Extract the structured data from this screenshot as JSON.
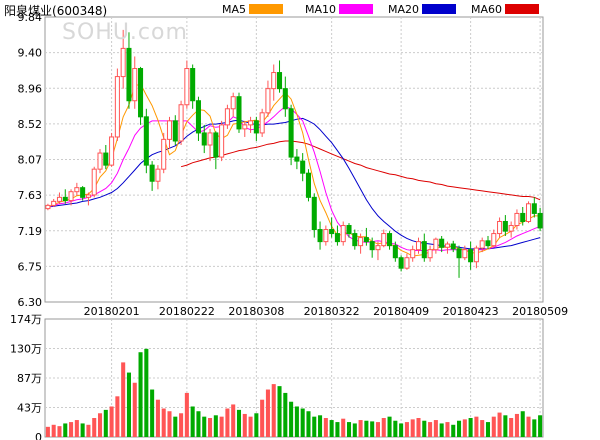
{
  "header": {
    "stock_name": "阳泉煤业",
    "stock_code": "(600348)",
    "watermark": "SOHU.com"
  },
  "colors": {
    "ma5": "#ff9900",
    "ma10": "#ff00ff",
    "ma20": "#0000cc",
    "ma60": "#dd0000",
    "up": "#ff5555",
    "down": "#00aa00",
    "grid": "#cccccc"
  },
  "chart_data": [
    {
      "type": "candlestick",
      "legend": [
        {
          "name": "MA5",
          "color": "#ff9900"
        },
        {
          "name": "MA10",
          "color": "#ff00ff"
        },
        {
          "name": "MA20",
          "color": "#0000cc"
        },
        {
          "name": "MA60",
          "color": "#dd0000"
        }
      ],
      "y_ticks": [
        "9.84",
        "9.40",
        "8.96",
        "8.52",
        "8.07",
        "7.63",
        "7.19",
        "6.75",
        "6.30"
      ],
      "ylim": [
        6.3,
        9.84
      ],
      "x_ticks": [
        {
          "label": "20180201",
          "index": 11
        },
        {
          "label": "20180222",
          "index": 24
        },
        {
          "label": "20180308",
          "index": 36
        },
        {
          "label": "20180322",
          "index": 49
        },
        {
          "label": "20180409",
          "index": 61
        },
        {
          "label": "20180423",
          "index": 73
        },
        {
          "label": "20180509",
          "index": 85
        }
      ],
      "ohlc": [
        [
          7.46,
          7.52,
          7.44,
          7.5
        ],
        [
          7.5,
          7.58,
          7.48,
          7.55
        ],
        [
          7.55,
          7.66,
          7.52,
          7.6
        ],
        [
          7.6,
          7.7,
          7.52,
          7.56
        ],
        [
          7.56,
          7.7,
          7.5,
          7.67
        ],
        [
          7.67,
          7.78,
          7.62,
          7.72
        ],
        [
          7.72,
          7.74,
          7.56,
          7.6
        ],
        [
          7.6,
          7.66,
          7.5,
          7.63
        ],
        [
          7.63,
          7.98,
          7.6,
          7.95
        ],
        [
          7.95,
          8.2,
          7.9,
          8.15
        ],
        [
          8.15,
          8.25,
          7.95,
          8.0
        ],
        [
          8.0,
          8.4,
          7.98,
          8.35
        ],
        [
          8.35,
          9.2,
          8.3,
          9.1
        ],
        [
          9.1,
          9.68,
          8.95,
          9.45
        ],
        [
          9.45,
          9.65,
          8.7,
          8.8
        ],
        [
          8.8,
          9.35,
          8.7,
          9.2
        ],
        [
          9.2,
          9.22,
          8.5,
          8.6
        ],
        [
          8.6,
          8.7,
          7.9,
          8.0
        ],
        [
          8.0,
          8.05,
          7.68,
          7.8
        ],
        [
          7.8,
          8.0,
          7.7,
          7.95
        ],
        [
          7.95,
          8.4,
          7.9,
          8.32
        ],
        [
          8.32,
          8.6,
          8.2,
          8.55
        ],
        [
          8.55,
          8.62,
          8.25,
          8.3
        ],
        [
          8.3,
          8.8,
          8.25,
          8.75
        ],
        [
          8.75,
          9.3,
          8.7,
          9.2
        ],
        [
          9.2,
          9.25,
          8.7,
          8.8
        ],
        [
          8.8,
          8.85,
          8.3,
          8.4
        ],
        [
          8.4,
          8.5,
          8.15,
          8.25
        ],
        [
          8.25,
          8.45,
          8.05,
          8.4
        ],
        [
          8.4,
          8.42,
          7.95,
          8.1
        ],
        [
          8.1,
          8.55,
          8.05,
          8.5
        ],
        [
          8.5,
          8.75,
          8.45,
          8.7
        ],
        [
          8.7,
          8.9,
          8.6,
          8.85
        ],
        [
          8.85,
          8.9,
          8.4,
          8.45
        ],
        [
          8.45,
          8.55,
          8.35,
          8.5
        ],
        [
          8.5,
          8.6,
          8.4,
          8.55
        ],
        [
          8.55,
          8.6,
          8.3,
          8.4
        ],
        [
          8.4,
          8.7,
          8.35,
          8.65
        ],
        [
          8.65,
          9.05,
          8.6,
          8.95
        ],
        [
          8.95,
          9.25,
          8.8,
          9.15
        ],
        [
          9.15,
          9.3,
          8.9,
          8.95
        ],
        [
          8.95,
          9.1,
          8.6,
          8.7
        ],
        [
          8.7,
          8.75,
          8.0,
          8.1
        ],
        [
          8.1,
          8.2,
          7.95,
          8.05
        ],
        [
          8.05,
          8.15,
          7.8,
          7.9
        ],
        [
          7.9,
          7.95,
          7.55,
          7.6
        ],
        [
          7.6,
          7.65,
          7.1,
          7.2
        ],
        [
          7.2,
          7.3,
          6.95,
          7.05
        ],
        [
          7.05,
          7.25,
          7.0,
          7.2
        ],
        [
          7.2,
          7.35,
          7.1,
          7.15
        ],
        [
          7.15,
          7.25,
          7.0,
          7.05
        ],
        [
          7.05,
          7.3,
          7.0,
          7.25
        ],
        [
          7.25,
          7.28,
          7.1,
          7.15
        ],
        [
          7.15,
          7.2,
          6.95,
          7.0
        ],
        [
          7.0,
          7.15,
          6.9,
          7.1
        ],
        [
          7.1,
          7.22,
          7.0,
          7.05
        ],
        [
          7.05,
          7.1,
          6.85,
          6.95
        ],
        [
          6.95,
          7.05,
          6.82,
          7.0
        ],
        [
          7.0,
          7.2,
          6.98,
          7.15
        ],
        [
          7.15,
          7.18,
          6.95,
          7.0
        ],
        [
          7.0,
          7.05,
          6.8,
          6.85
        ],
        [
          6.85,
          6.88,
          6.68,
          6.72
        ],
        [
          6.72,
          6.9,
          6.7,
          6.85
        ],
        [
          6.85,
          7.0,
          6.8,
          6.95
        ],
        [
          6.95,
          7.1,
          6.9,
          7.05
        ],
        [
          7.05,
          7.15,
          6.8,
          6.85
        ],
        [
          6.85,
          7.0,
          6.8,
          6.95
        ],
        [
          6.95,
          7.1,
          6.9,
          7.08
        ],
        [
          7.08,
          7.12,
          6.92,
          6.98
        ],
        [
          6.98,
          7.05,
          6.9,
          7.02
        ],
        [
          7.02,
          7.06,
          6.92,
          6.96
        ],
        [
          6.96,
          7.0,
          6.6,
          6.85
        ],
        [
          6.85,
          7.0,
          6.82,
          6.95
        ],
        [
          6.95,
          7.05,
          6.7,
          6.8
        ],
        [
          6.8,
          7.0,
          6.72,
          6.97
        ],
        [
          6.97,
          7.1,
          6.92,
          7.06
        ],
        [
          7.06,
          7.12,
          6.96,
          7.0
        ],
        [
          7.0,
          7.2,
          6.98,
          7.15
        ],
        [
          7.15,
          7.35,
          7.1,
          7.3
        ],
        [
          7.3,
          7.38,
          7.12,
          7.18
        ],
        [
          7.18,
          7.3,
          7.1,
          7.25
        ],
        [
          7.25,
          7.45,
          7.2,
          7.4
        ],
        [
          7.4,
          7.48,
          7.25,
          7.3
        ],
        [
          7.3,
          7.55,
          7.28,
          7.52
        ],
        [
          7.52,
          7.6,
          7.35,
          7.4
        ],
        [
          7.4,
          7.47,
          7.18,
          7.22
        ]
      ],
      "ma5": [
        7.48,
        7.51,
        7.54,
        7.56,
        7.58,
        7.62,
        7.63,
        7.64,
        7.71,
        7.85,
        7.93,
        8.08,
        8.33,
        8.6,
        8.75,
        8.98,
        9.01,
        8.87,
        8.74,
        8.56,
        8.34,
        8.13,
        8.18,
        8.37,
        8.54,
        8.62,
        8.69,
        8.68,
        8.61,
        8.39,
        8.33,
        8.37,
        8.51,
        8.52,
        8.54,
        8.55,
        8.56,
        8.53,
        8.62,
        8.74,
        8.82,
        8.9,
        8.82,
        8.63,
        8.4,
        8.07,
        7.77,
        7.56,
        7.41,
        7.24,
        7.13,
        7.14,
        7.16,
        7.12,
        7.11,
        7.11,
        7.05,
        7.02,
        7.04,
        7.01,
        7.0,
        6.94,
        6.91,
        6.87,
        6.88,
        6.89,
        6.93,
        6.98,
        6.98,
        6.98,
        7.0,
        6.96,
        6.95,
        6.91,
        6.91,
        6.93,
        6.96,
        7.0,
        7.1,
        7.14,
        7.18,
        7.26,
        7.29,
        7.33,
        7.37,
        7.37
      ],
      "ma10": [
        7.48,
        7.5,
        7.52,
        7.53,
        7.55,
        7.57,
        7.58,
        7.6,
        7.63,
        7.67,
        7.71,
        7.78,
        7.9,
        8.07,
        8.21,
        8.37,
        8.46,
        8.51,
        8.55,
        8.55,
        8.55,
        8.55,
        8.55,
        8.55,
        8.55,
        8.48,
        8.41,
        8.43,
        8.49,
        8.47,
        8.48,
        8.53,
        8.6,
        8.57,
        8.47,
        8.44,
        8.45,
        8.49,
        8.54,
        8.6,
        8.67,
        8.73,
        8.7,
        8.63,
        8.55,
        8.36,
        8.16,
        7.92,
        7.66,
        7.44,
        7.29,
        7.2,
        7.11,
        7.07,
        7.05,
        7.04,
        7.05,
        7.06,
        7.05,
        7.03,
        7.02,
        6.98,
        6.95,
        6.94,
        6.94,
        6.94,
        6.94,
        6.95,
        6.94,
        6.95,
        6.95,
        6.95,
        6.95,
        6.94,
        6.95,
        6.95,
        6.96,
        6.98,
        7.01,
        7.04,
        7.08,
        7.12,
        7.15,
        7.18,
        7.21,
        7.24
      ],
      "ma20": [
        7.48,
        7.49,
        7.5,
        7.51,
        7.52,
        7.53,
        7.55,
        7.56,
        7.58,
        7.6,
        7.63,
        7.66,
        7.71,
        7.78,
        7.86,
        7.94,
        8.02,
        8.08,
        8.13,
        8.16,
        8.18,
        8.21,
        8.24,
        8.29,
        8.36,
        8.41,
        8.45,
        8.48,
        8.51,
        8.51,
        8.52,
        8.53,
        8.55,
        8.56,
        8.54,
        8.52,
        8.5,
        8.5,
        8.51,
        8.51,
        8.52,
        8.53,
        8.55,
        8.57,
        8.58,
        8.55,
        8.51,
        8.44,
        8.36,
        8.28,
        8.18,
        8.08,
        7.96,
        7.83,
        7.7,
        7.57,
        7.46,
        7.37,
        7.3,
        7.24,
        7.18,
        7.13,
        7.09,
        7.06,
        7.04,
        7.03,
        7.02,
        7.01,
        7.0,
        6.99,
        6.99,
        6.98,
        6.97,
        6.96,
        6.96,
        6.96,
        6.96,
        6.97,
        6.98,
        6.99,
        7.0,
        7.02,
        7.04,
        7.06,
        7.08,
        7.1
      ],
      "ma60": [
        null,
        null,
        null,
        null,
        null,
        null,
        null,
        null,
        null,
        null,
        null,
        null,
        null,
        null,
        null,
        null,
        null,
        null,
        null,
        null,
        null,
        null,
        null,
        7.98,
        8.0,
        8.03,
        8.05,
        8.07,
        8.09,
        8.1,
        8.12,
        8.14,
        8.16,
        8.18,
        8.19,
        8.21,
        8.22,
        8.24,
        8.26,
        8.27,
        8.29,
        8.3,
        8.3,
        8.29,
        8.28,
        8.26,
        8.23,
        8.2,
        8.17,
        8.14,
        8.11,
        8.08,
        8.05,
        8.02,
        8.0,
        7.97,
        7.95,
        7.93,
        7.91,
        7.89,
        7.88,
        7.86,
        7.84,
        7.83,
        7.81,
        7.8,
        7.79,
        7.77,
        7.76,
        7.74,
        7.73,
        7.72,
        7.71,
        7.7,
        7.69,
        7.68,
        7.67,
        7.66,
        7.65,
        7.64,
        7.63,
        7.62,
        7.61,
        7.61,
        7.6,
        7.57
      ]
    },
    {
      "type": "bar",
      "y_ticks": [
        "174万",
        "130万",
        "87万",
        "43万",
        "0"
      ],
      "ylim": [
        0,
        174
      ],
      "unit": "万",
      "volume": [
        15,
        18,
        16,
        20,
        22,
        25,
        20,
        18,
        28,
        35,
        40,
        45,
        60,
        110,
        95,
        80,
        125,
        130,
        70,
        55,
        42,
        38,
        30,
        35,
        65,
        45,
        38,
        30,
        28,
        32,
        30,
        42,
        48,
        40,
        34,
        30,
        35,
        55,
        70,
        78,
        75,
        65,
        52,
        45,
        42,
        38,
        30,
        32,
        28,
        25,
        22,
        27,
        22,
        20,
        25,
        24,
        23,
        22,
        28,
        30,
        24,
        20,
        22,
        26,
        28,
        24,
        22,
        25,
        20,
        22,
        18,
        24,
        26,
        28,
        30,
        25,
        22,
        30,
        36,
        32,
        28,
        34,
        38,
        30,
        26,
        32
      ],
      "direction": [
        1,
        1,
        1,
        -1,
        1,
        1,
        -1,
        1,
        1,
        1,
        -1,
        1,
        1,
        1,
        -1,
        1,
        -1,
        -1,
        -1,
        1,
        1,
        1,
        -1,
        1,
        1,
        -1,
        -1,
        -1,
        1,
        -1,
        1,
        1,
        1,
        -1,
        1,
        1,
        -1,
        1,
        1,
        1,
        -1,
        -1,
        -1,
        -1,
        -1,
        -1,
        -1,
        -1,
        1,
        -1,
        -1,
        1,
        -1,
        -1,
        1,
        -1,
        -1,
        1,
        1,
        -1,
        -1,
        -1,
        1,
        1,
        1,
        -1,
        1,
        1,
        -1,
        1,
        -1,
        -1,
        1,
        -1,
        1,
        1,
        -1,
        1,
        1,
        -1,
        1,
        1,
        -1,
        1,
        -1,
        -1
      ]
    }
  ]
}
